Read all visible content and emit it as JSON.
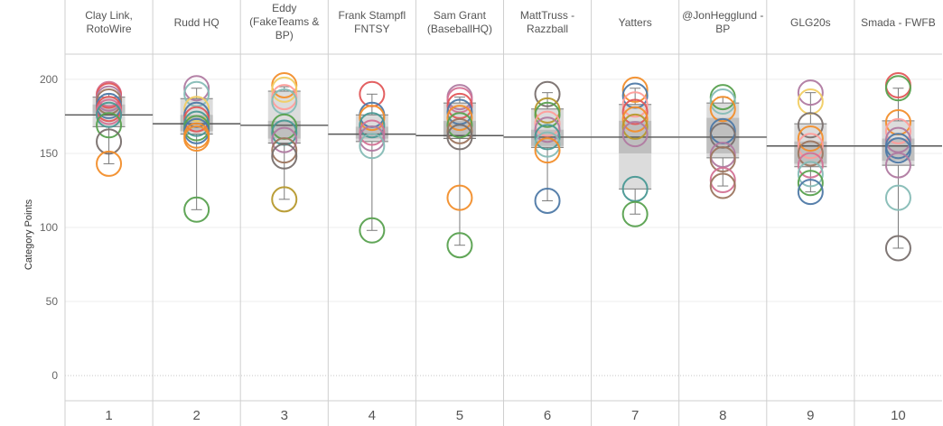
{
  "chart_data": {
    "type": "box_plot_with_points",
    "ylabel": "Category Points",
    "ylim": [
      -17,
      217
    ],
    "yticks": [
      0,
      50,
      100,
      150,
      200
    ],
    "grid": true,
    "colors": {
      "box_outer": "#dcdcdc",
      "box_inner": "#bfbfbf",
      "whisker": "#7a7a7a",
      "median_line": "#555555",
      "grid": "#ececec",
      "divider": "#cfcfcf",
      "zero_line": "#c8c8c8"
    },
    "columns": [
      {
        "rank": "1",
        "header": [
          "Clay Link,",
          "RotoWire"
        ],
        "median_line": 176,
        "box": {
          "q1": 168,
          "q3": 188,
          "inner_low": 177,
          "inner_high": 183
        },
        "whisker": [
          143,
          190
        ],
        "points": [
          {
            "y": 190,
            "color": "#d37295"
          },
          {
            "y": 189,
            "color": "#e15759"
          },
          {
            "y": 187,
            "color": "#b07aa1"
          },
          {
            "y": 185,
            "color": "#9d7660"
          },
          {
            "y": 182,
            "color": "#4e79a7"
          },
          {
            "y": 180,
            "color": "#e15759"
          },
          {
            "y": 178,
            "color": "#d37295"
          },
          {
            "y": 176,
            "color": "#499894"
          },
          {
            "y": 169,
            "color": "#59a14f"
          },
          {
            "y": 158,
            "color": "#79706e"
          },
          {
            "y": 143,
            "color": "#f28e2b"
          }
        ]
      },
      {
        "rank": "2",
        "header": [
          "Rudd HQ"
        ],
        "median_line": 170,
        "box": {
          "q1": 163,
          "q3": 187,
          "inner_low": 165,
          "inner_high": 176
        },
        "whisker": [
          112,
          194
        ],
        "points": [
          {
            "y": 194,
            "color": "#b07aa1"
          },
          {
            "y": 190,
            "color": "#86bcb6"
          },
          {
            "y": 180,
            "color": "#f1ce63"
          },
          {
            "y": 176,
            "color": "#4e79a7"
          },
          {
            "y": 173,
            "color": "#e15759"
          },
          {
            "y": 170,
            "color": "#499894"
          },
          {
            "y": 167,
            "color": "#59a14f"
          },
          {
            "y": 165,
            "color": "#4e79a7"
          },
          {
            "y": 162,
            "color": "#f28e2b"
          },
          {
            "y": 160,
            "color": "#f28e2b"
          },
          {
            "y": 112,
            "color": "#59a14f"
          }
        ]
      },
      {
        "rank": "3",
        "header": [
          "Eddy",
          "(FakeTeams &",
          "BP)"
        ],
        "median_line": 169,
        "box": {
          "q1": 157,
          "q3": 192,
          "inner_low": 160,
          "inner_high": 172
        },
        "whisker": [
          119,
          195
        ],
        "points": [
          {
            "y": 196,
            "color": "#f28e2b"
          },
          {
            "y": 193,
            "color": "#f1ce63"
          },
          {
            "y": 188,
            "color": "#ff9d9a"
          },
          {
            "y": 185,
            "color": "#86bcb6"
          },
          {
            "y": 168,
            "color": "#59a14f"
          },
          {
            "y": 164,
            "color": "#499894"
          },
          {
            "y": 159,
            "color": "#b07aa1"
          },
          {
            "y": 152,
            "color": "#9d7660"
          },
          {
            "y": 148,
            "color": "#79706e"
          },
          {
            "y": 119,
            "color": "#b6992d"
          }
        ]
      },
      {
        "rank": "4",
        "header": [
          "Frank Stampfl",
          "FNTSY"
        ],
        "median_line": 163,
        "box": {
          "q1": 158,
          "q3": 176,
          "inner_low": 160,
          "inner_high": 168
        },
        "whisker": [
          98,
          190
        ],
        "points": [
          {
            "y": 190,
            "color": "#e15759"
          },
          {
            "y": 176,
            "color": "#4e79a7"
          },
          {
            "y": 174,
            "color": "#f28e2b"
          },
          {
            "y": 169,
            "color": "#499894"
          },
          {
            "y": 164,
            "color": "#d37295"
          },
          {
            "y": 160,
            "color": "#b07aa1"
          },
          {
            "y": 155,
            "color": "#86bcb6"
          },
          {
            "y": 98,
            "color": "#59a14f"
          }
        ]
      },
      {
        "rank": "5",
        "header": [
          "Sam Grant",
          "(BaseballHQ)"
        ],
        "median_line": 162,
        "box": {
          "q1": 160,
          "q3": 184,
          "inner_low": 162,
          "inner_high": 172
        },
        "whisker": [
          88,
          188
        ],
        "points": [
          {
            "y": 188,
            "color": "#b07aa1"
          },
          {
            "y": 186,
            "color": "#d37295"
          },
          {
            "y": 182,
            "color": "#e15759"
          },
          {
            "y": 178,
            "color": "#4e79a7"
          },
          {
            "y": 174,
            "color": "#f28e2b"
          },
          {
            "y": 169,
            "color": "#59a14f"
          },
          {
            "y": 165,
            "color": "#9d7660"
          },
          {
            "y": 161,
            "color": "#79706e"
          },
          {
            "y": 120,
            "color": "#f28e2b"
          },
          {
            "y": 88,
            "color": "#59a14f"
          }
        ]
      },
      {
        "rank": "6",
        "header": [
          "MattTruss -",
          "Razzball"
        ],
        "median_line": 161,
        "box": {
          "q1": 154,
          "q3": 180,
          "inner_low": 155,
          "inner_high": 166
        },
        "whisker": [
          118,
          191
        ],
        "points": [
          {
            "y": 190,
            "color": "#79706e"
          },
          {
            "y": 179,
            "color": "#b6992d"
          },
          {
            "y": 176,
            "color": "#59a14f"
          },
          {
            "y": 170,
            "color": "#ff9d9a"
          },
          {
            "y": 166,
            "color": "#b07aa1"
          },
          {
            "y": 161,
            "color": "#499894"
          },
          {
            "y": 156,
            "color": "#86bcb6"
          },
          {
            "y": 152,
            "color": "#f28e2b"
          },
          {
            "y": 118,
            "color": "#4e79a7"
          }
        ]
      },
      {
        "rank": "7",
        "header": [
          "Yatters"
        ],
        "median_line": 161,
        "box": {
          "q1": 126,
          "q3": 183,
          "inner_low": 150,
          "inner_high": 172
        },
        "whisker": [
          109,
          194
        ],
        "points": [
          {
            "y": 193,
            "color": "#f28e2b"
          },
          {
            "y": 189,
            "color": "#4e79a7"
          },
          {
            "y": 183,
            "color": "#ff9d9a"
          },
          {
            "y": 178,
            "color": "#e15759"
          },
          {
            "y": 173,
            "color": "#f28e2b"
          },
          {
            "y": 168,
            "color": "#b6992d"
          },
          {
            "y": 163,
            "color": "#b07aa1"
          },
          {
            "y": 126,
            "color": "#499894"
          },
          {
            "y": 109,
            "color": "#59a14f"
          }
        ]
      },
      {
        "rank": "8",
        "header": [
          "@JonHegglund -",
          "BP"
        ],
        "median_line": 161,
        "box": {
          "q1": 147,
          "q3": 184,
          "inner_low": 150,
          "inner_high": 174
        },
        "whisker": [
          128,
          188
        ],
        "points": [
          {
            "y": 188,
            "color": "#59a14f"
          },
          {
            "y": 185,
            "color": "#86bcb6"
          },
          {
            "y": 180,
            "color": "#f28e2b"
          },
          {
            "y": 165,
            "color": "#4e79a7"
          },
          {
            "y": 162,
            "color": "#79706e"
          },
          {
            "y": 149,
            "color": "#b07aa1"
          },
          {
            "y": 146,
            "color": "#9d7660"
          },
          {
            "y": 132,
            "color": "#d37295"
          },
          {
            "y": 128,
            "color": "#9d7660"
          }
        ]
      },
      {
        "rank": "9",
        "header": [
          "GLG20s"
        ],
        "median_line": 155,
        "box": {
          "q1": 141,
          "q3": 170,
          "inner_low": 143,
          "inner_high": 158
        },
        "whisker": [
          124,
          191
        ],
        "points": [
          {
            "y": 191,
            "color": "#b07aa1"
          },
          {
            "y": 185,
            "color": "#f1ce63"
          },
          {
            "y": 169,
            "color": "#79706e"
          },
          {
            "y": 160,
            "color": "#f28e2b"
          },
          {
            "y": 155,
            "color": "#ff9d9a"
          },
          {
            "y": 150,
            "color": "#9d7660"
          },
          {
            "y": 142,
            "color": "#d37295"
          },
          {
            "y": 136,
            "color": "#86bcb6"
          },
          {
            "y": 130,
            "color": "#59a14f"
          },
          {
            "y": 124,
            "color": "#4e79a7"
          }
        ]
      },
      {
        "rank": "10",
        "header": [
          "Smada - FWFB"
        ],
        "median_line": 155,
        "box": {
          "q1": 142,
          "q3": 172,
          "inner_low": 145,
          "inner_high": 160
        },
        "whisker": [
          86,
          194
        ],
        "points": [
          {
            "y": 196,
            "color": "#e15759"
          },
          {
            "y": 194,
            "color": "#59a14f"
          },
          {
            "y": 171,
            "color": "#f28e2b"
          },
          {
            "y": 165,
            "color": "#ff9d9a"
          },
          {
            "y": 159,
            "color": "#b07aa1"
          },
          {
            "y": 155,
            "color": "#4e79a7"
          },
          {
            "y": 152,
            "color": "#4e79a7"
          },
          {
            "y": 142,
            "color": "#b07aa1"
          },
          {
            "y": 120,
            "color": "#86bcb6"
          },
          {
            "y": 86,
            "color": "#79706e"
          }
        ]
      }
    ]
  }
}
